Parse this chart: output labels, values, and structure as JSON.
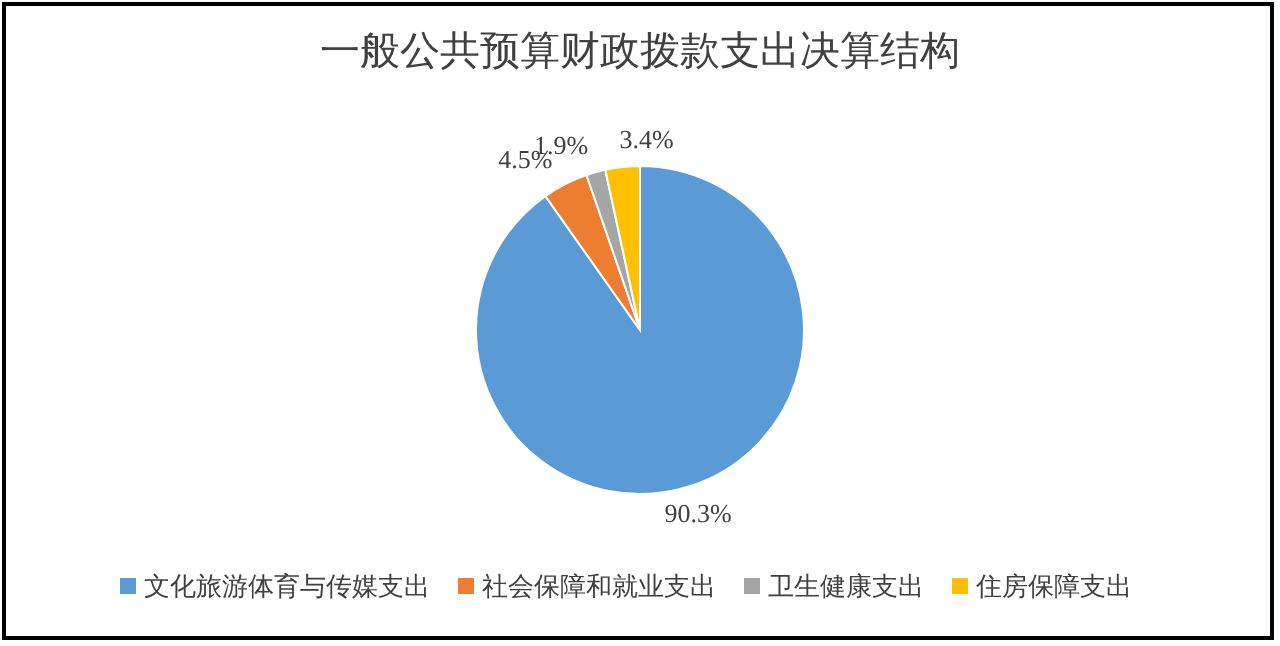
{
  "chart_data": {
    "type": "pie",
    "title": "一般公共预算财政拨款支出决算结构",
    "categories": [
      "文化旅游体育与传媒支出",
      "社会保障和就业支出",
      "卫生健康支出",
      "住房保障支出"
    ],
    "values": [
      90.3,
      4.5,
      1.9,
      3.4
    ],
    "colors": [
      "#5b9bd5",
      "#ed7d31",
      "#a5a5a5",
      "#ffc000"
    ],
    "value_labels": [
      "90.3%",
      "4.5%",
      "1.9%",
      "3.4%"
    ],
    "legend": "bottom"
  }
}
